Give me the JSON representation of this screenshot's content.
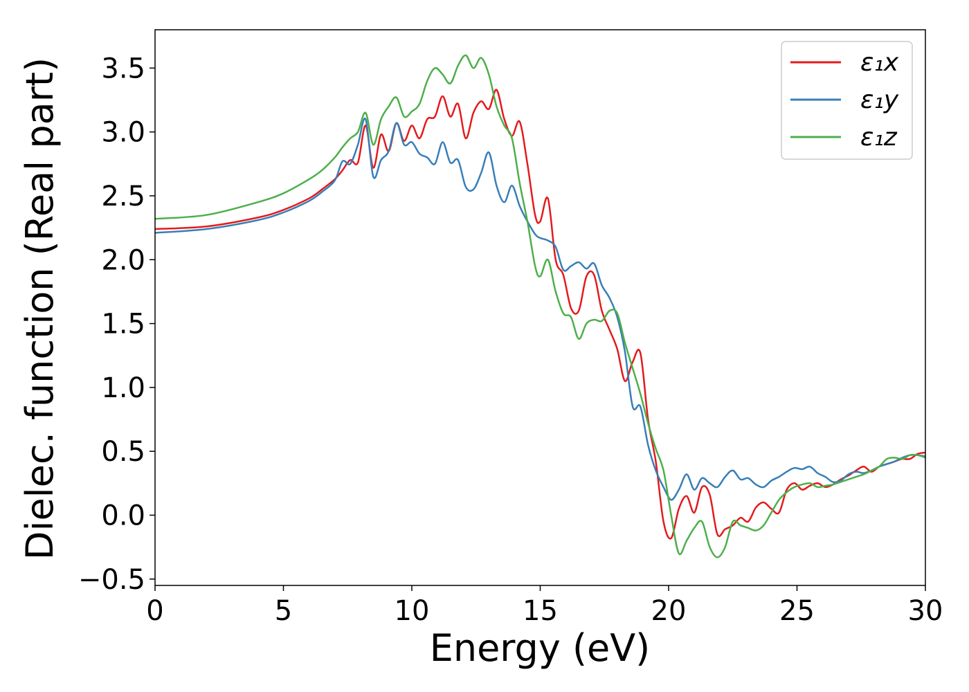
{
  "chart_data": {
    "type": "line",
    "title": "",
    "xlabel": "Energy (eV)",
    "ylabel": "Dielec. function (Real part)",
    "xlim": [
      0,
      30
    ],
    "ylim": [
      -0.55,
      3.8
    ],
    "xticks": [
      0,
      5,
      10,
      15,
      20,
      25,
      30
    ],
    "xtick_labels": [
      "0",
      "5",
      "10",
      "15",
      "20",
      "25",
      "30"
    ],
    "yticks": [
      -0.5,
      0.0,
      0.5,
      1.0,
      1.5,
      2.0,
      2.5,
      3.0,
      3.5
    ],
    "ytick_labels": [
      "−0.5",
      "0.0",
      "0.5",
      "1.0",
      "1.5",
      "2.0",
      "2.5",
      "3.0",
      "3.5"
    ],
    "grid": false,
    "legend_position": "top-right",
    "series": [
      {
        "name": "ε₁x",
        "color": "#e41a1c",
        "x": [
          0,
          2,
          4,
          5,
          6,
          6.5,
          7,
          7.3,
          7.6,
          7.9,
          8.2,
          8.5,
          8.8,
          9.1,
          9.4,
          9.7,
          10,
          10.3,
          10.6,
          10.9,
          11.2,
          11.5,
          11.8,
          12.1,
          12.4,
          12.7,
          13,
          13.3,
          13.6,
          13.9,
          14.2,
          14.5,
          14.8,
          15,
          15.3,
          15.6,
          15.9,
          16.2,
          16.5,
          16.8,
          17.1,
          17.4,
          17.7,
          18,
          18.3,
          18.6,
          18.9,
          19.2,
          19.5,
          19.8,
          20.1,
          20.4,
          20.7,
          21,
          21.3,
          21.6,
          21.9,
          22.2,
          22.5,
          22.8,
          23.1,
          23.4,
          23.7,
          24,
          24.3,
          24.6,
          24.9,
          25.2,
          25.5,
          25.8,
          26.1,
          26.4,
          26.7,
          27,
          27.3,
          27.6,
          27.9,
          28.2,
          28.5,
          28.8,
          29.1,
          29.4,
          29.7,
          30
        ],
        "y": [
          2.24,
          2.26,
          2.33,
          2.39,
          2.48,
          2.55,
          2.63,
          2.7,
          2.78,
          2.76,
          3.05,
          2.72,
          2.98,
          2.85,
          3.07,
          2.93,
          3.05,
          2.95,
          3.1,
          3.12,
          3.28,
          3.12,
          3.22,
          2.95,
          3.15,
          3.24,
          3.18,
          3.33,
          3.1,
          2.97,
          3.08,
          2.75,
          2.35,
          2.3,
          2.48,
          2.0,
          1.88,
          1.62,
          1.6,
          1.87,
          1.88,
          1.6,
          1.45,
          1.3,
          1.05,
          1.2,
          1.27,
          0.75,
          0.42,
          -0.05,
          -0.18,
          0.05,
          0.15,
          0.02,
          0.22,
          0.16,
          -0.15,
          -0.11,
          -0.08,
          -0.02,
          -0.05,
          0.06,
          0.1,
          0.05,
          0.02,
          0.2,
          0.25,
          0.2,
          0.23,
          0.25,
          0.22,
          0.24,
          0.28,
          0.31,
          0.35,
          0.38,
          0.34,
          0.38,
          0.4,
          0.42,
          0.44,
          0.44,
          0.48,
          0.49
        ]
      },
      {
        "name": "ε₁y",
        "color": "#377eb8",
        "x": [
          0,
          2,
          4,
          5,
          6,
          6.5,
          7,
          7.3,
          7.6,
          7.9,
          8.2,
          8.5,
          8.8,
          9.1,
          9.4,
          9.7,
          10,
          10.3,
          10.6,
          10.9,
          11.2,
          11.5,
          11.8,
          12.1,
          12.4,
          12.7,
          13,
          13.3,
          13.6,
          13.9,
          14.2,
          14.5,
          14.8,
          15,
          15.3,
          15.6,
          15.9,
          16.2,
          16.5,
          16.8,
          17.1,
          17.4,
          17.7,
          18,
          18.3,
          18.6,
          18.9,
          19.2,
          19.5,
          19.8,
          20.1,
          20.4,
          20.7,
          21,
          21.3,
          21.6,
          21.9,
          22.2,
          22.5,
          22.8,
          23.1,
          23.4,
          23.7,
          24,
          24.3,
          24.6,
          24.9,
          25.2,
          25.5,
          25.8,
          26.1,
          26.4,
          26.7,
          27,
          27.3,
          27.6,
          27.9,
          28.2,
          28.5,
          28.8,
          29.1,
          29.4,
          29.7,
          30
        ],
        "y": [
          2.21,
          2.24,
          2.31,
          2.37,
          2.46,
          2.53,
          2.62,
          2.77,
          2.75,
          2.9,
          3.1,
          2.65,
          2.78,
          2.85,
          3.07,
          2.9,
          2.92,
          2.83,
          2.8,
          2.75,
          2.92,
          2.76,
          2.78,
          2.57,
          2.55,
          2.68,
          2.84,
          2.58,
          2.45,
          2.58,
          2.42,
          2.3,
          2.2,
          2.17,
          2.15,
          2.1,
          1.92,
          1.95,
          1.98,
          1.93,
          1.97,
          1.8,
          1.7,
          1.55,
          1.28,
          0.85,
          0.85,
          0.55,
          0.35,
          0.22,
          0.12,
          0.2,
          0.32,
          0.2,
          0.29,
          0.25,
          0.22,
          0.3,
          0.35,
          0.28,
          0.29,
          0.24,
          0.22,
          0.27,
          0.3,
          0.34,
          0.37,
          0.36,
          0.38,
          0.33,
          0.3,
          0.26,
          0.27,
          0.32,
          0.34,
          0.33,
          0.35,
          0.38,
          0.4,
          0.42,
          0.45,
          0.47,
          0.47,
          0.46
        ]
      },
      {
        "name": "ε₁z",
        "color": "#4daf4a",
        "x": [
          0,
          2,
          4,
          5,
          6,
          6.5,
          7,
          7.3,
          7.6,
          7.9,
          8.2,
          8.5,
          8.8,
          9.1,
          9.4,
          9.7,
          10,
          10.3,
          10.6,
          10.9,
          11.2,
          11.5,
          11.8,
          12.1,
          12.4,
          12.7,
          13,
          13.3,
          13.6,
          13.9,
          14.2,
          14.5,
          14.8,
          15,
          15.3,
          15.6,
          15.9,
          16.2,
          16.5,
          16.8,
          17.1,
          17.4,
          17.7,
          18,
          18.3,
          18.6,
          18.9,
          19.2,
          19.5,
          19.8,
          20.1,
          20.4,
          20.7,
          21,
          21.3,
          21.6,
          21.9,
          22.2,
          22.5,
          22.8,
          23.1,
          23.4,
          23.7,
          24,
          24.3,
          24.6,
          24.9,
          25.2,
          25.5,
          25.8,
          26.1,
          26.4,
          26.7,
          27,
          27.3,
          27.6,
          27.9,
          28.2,
          28.5,
          28.8,
          29.1,
          29.4,
          29.7,
          30
        ],
        "y": [
          2.32,
          2.35,
          2.45,
          2.52,
          2.63,
          2.7,
          2.8,
          2.88,
          2.95,
          3.0,
          3.15,
          2.9,
          3.1,
          3.2,
          3.27,
          3.12,
          3.16,
          3.22,
          3.4,
          3.5,
          3.45,
          3.38,
          3.52,
          3.6,
          3.5,
          3.58,
          3.45,
          3.2,
          3.05,
          2.95,
          2.6,
          2.3,
          1.95,
          1.87,
          2.0,
          1.75,
          1.58,
          1.55,
          1.38,
          1.5,
          1.53,
          1.52,
          1.6,
          1.58,
          1.35,
          1.15,
          0.95,
          0.72,
          0.52,
          0.35,
          0.0,
          -0.3,
          -0.2,
          -0.1,
          -0.05,
          -0.25,
          -0.33,
          -0.25,
          -0.05,
          -0.08,
          -0.1,
          -0.12,
          -0.08,
          0.02,
          0.12,
          0.18,
          0.22,
          0.24,
          0.25,
          0.22,
          0.23,
          0.24,
          0.26,
          0.28,
          0.3,
          0.32,
          0.35,
          0.38,
          0.44,
          0.45,
          0.44,
          0.47,
          0.47,
          0.45
        ]
      }
    ]
  }
}
